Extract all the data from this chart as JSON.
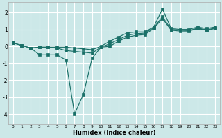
{
  "xlabel": "Humidex (Indice chaleur)",
  "background_color": "#cce8e8",
  "grid_color": "#ffffff",
  "line_color": "#1a7068",
  "xlim": [
    -0.5,
    23.5
  ],
  "ylim": [
    -4.6,
    2.6
  ],
  "yticks": [
    -4,
    -3,
    -2,
    -1,
    0,
    1,
    2
  ],
  "xticks": [
    0,
    1,
    2,
    3,
    4,
    5,
    6,
    7,
    8,
    9,
    10,
    11,
    12,
    13,
    14,
    15,
    16,
    17,
    18,
    19,
    20,
    21,
    22,
    23
  ],
  "line1_x": [
    0,
    1,
    2,
    3,
    4,
    5,
    6,
    7,
    8,
    9,
    10,
    11,
    12,
    13,
    14,
    15,
    16,
    17,
    18,
    19,
    20,
    21,
    22,
    23
  ],
  "line1_y": [
    0.2,
    0.05,
    -0.1,
    -0.05,
    -0.05,
    -0.05,
    -0.05,
    -0.1,
    -0.15,
    -0.2,
    0.0,
    0.3,
    0.55,
    0.8,
    0.85,
    0.85,
    1.15,
    2.2,
    1.05,
    1.0,
    1.0,
    1.15,
    1.05,
    1.15
  ],
  "line2_x": [
    0,
    1,
    2,
    3,
    4,
    5,
    6,
    7,
    8,
    9,
    10,
    11,
    12,
    13,
    14,
    15,
    16,
    17,
    18,
    19,
    20,
    21,
    22,
    23
  ],
  "line2_y": [
    0.2,
    0.05,
    -0.1,
    -0.05,
    -0.05,
    -0.1,
    -0.25,
    -0.3,
    -0.35,
    -0.4,
    -0.05,
    0.0,
    0.3,
    0.55,
    0.65,
    0.7,
    1.05,
    1.65,
    0.95,
    0.9,
    0.9,
    1.05,
    0.95,
    1.05
  ],
  "line3_x": [
    2,
    3,
    4,
    5,
    6,
    7,
    8,
    9,
    10,
    11,
    12,
    13,
    14,
    15,
    16,
    17,
    18,
    19,
    20,
    21,
    22,
    23
  ],
  "line3_y": [
    -0.1,
    -0.5,
    -0.5,
    -0.5,
    -0.8,
    -4.0,
    -2.85,
    -0.7,
    -0.05,
    0.15,
    0.4,
    0.65,
    0.75,
    0.78,
    1.1,
    1.75,
    1.0,
    0.95,
    0.93,
    1.08,
    0.98,
    1.08
  ]
}
